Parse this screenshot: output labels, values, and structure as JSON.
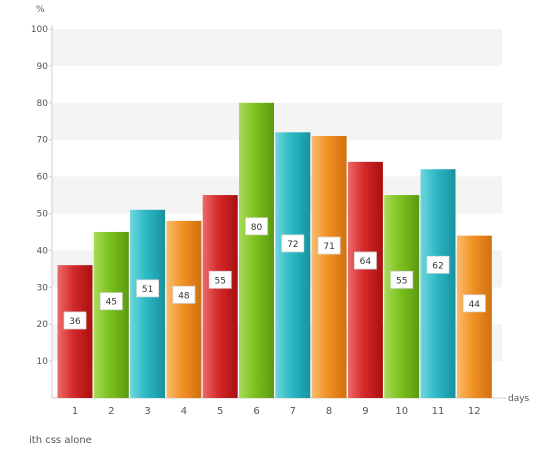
{
  "chart_data": {
    "type": "bar",
    "categories": [
      "1",
      "2",
      "3",
      "4",
      "5",
      "6",
      "7",
      "8",
      "9",
      "10",
      "11",
      "12"
    ],
    "values": [
      36,
      45,
      51,
      48,
      55,
      80,
      72,
      71,
      64,
      55,
      62,
      44
    ],
    "value_labels": [
      "36",
      "45",
      "51",
      "48",
      "55",
      "80",
      "72",
      "71",
      "64",
      "55",
      "62",
      "44"
    ],
    "ylim": [
      0,
      100
    ],
    "yticks": [
      "10",
      "20",
      "30",
      "40",
      "50",
      "60",
      "70",
      "80",
      "90",
      "100"
    ],
    "ylabel": "%",
    "xlabel": "days",
    "grid": "alternating horizontal bands",
    "legend": "none",
    "bar_colors": [
      "#d42a2a",
      "#7cc11e",
      "#2cb9c5",
      "#f29124"
    ],
    "bar_color_names": [
      "red",
      "green",
      "teal",
      "orange"
    ]
  },
  "caption": "ith css alone"
}
